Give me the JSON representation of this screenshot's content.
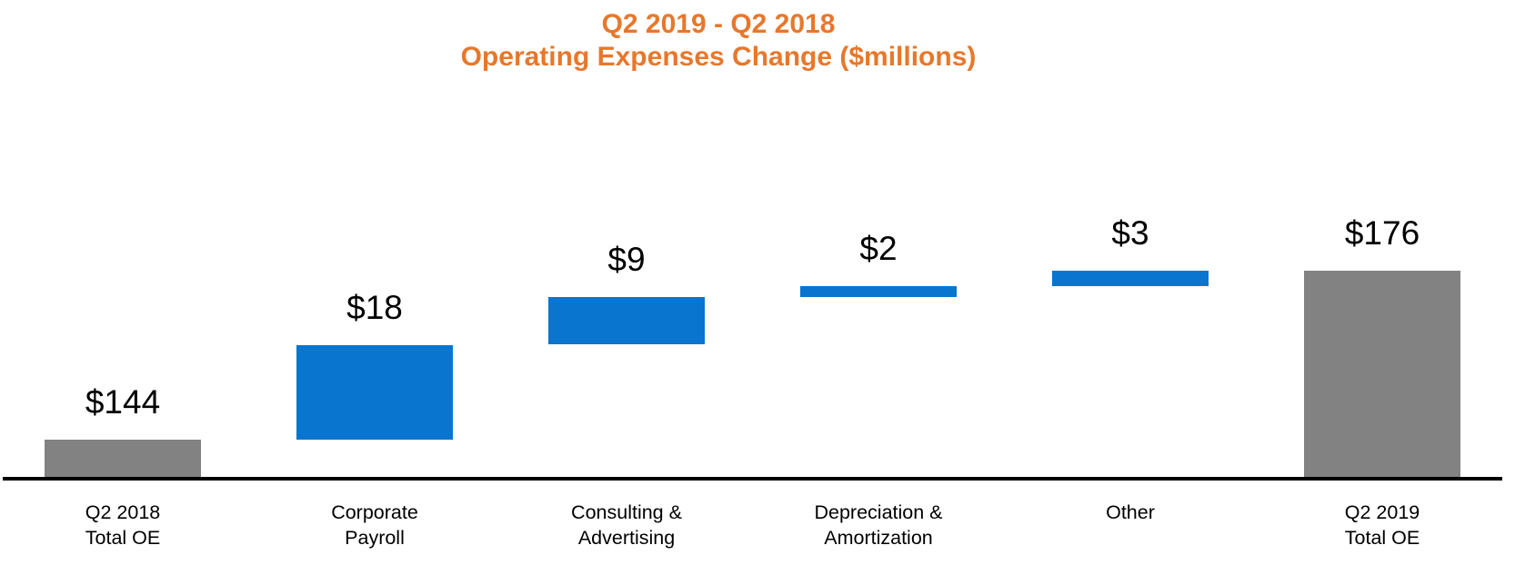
{
  "title": {
    "line1": "Q2 2019 - Q2 2018",
    "line2": "Operating Expenses Change ($millions)",
    "color": "#E6782D"
  },
  "chart_data": {
    "type": "bar",
    "subtype": "waterfall",
    "title": "Q2 2019 - Q2 2018 Operating Expenses Change ($millions)",
    "xlabel": "",
    "ylabel": "",
    "grid": false,
    "legend": false,
    "y_axis_visible": false,
    "ylim": [
      137,
      180
    ],
    "baseline_note": "x-axis baseline drawn at value 137 (truncated axis)",
    "categories": [
      "Q2 2018 Total OE",
      "Corporate Payroll",
      "Consulting & Advertising",
      "Depreciation & Amortization",
      "Other",
      "Q2 2019 Total OE"
    ],
    "steps": [
      {
        "slug": "q2-2018-total-oe",
        "label_lines": [
          "Q2 2018",
          "Total OE"
        ],
        "value": 144,
        "display": "$144",
        "kind": "total",
        "start": 0,
        "end": 144
      },
      {
        "slug": "corporate-payroll",
        "label_lines": [
          "Corporate",
          "Payroll"
        ],
        "value": 18,
        "display": "$18",
        "kind": "increase",
        "start": 144,
        "end": 162
      },
      {
        "slug": "consulting-advertising",
        "label_lines": [
          "Consulting &",
          "Advertising"
        ],
        "value": 9,
        "display": "$9",
        "kind": "increase",
        "start": 162,
        "end": 171
      },
      {
        "slug": "depreciation-amortization",
        "label_lines": [
          "Depreciation &",
          "Amortization"
        ],
        "value": 2,
        "display": "$2",
        "kind": "increase",
        "start": 171,
        "end": 173
      },
      {
        "slug": "other",
        "label_lines": [
          "Other"
        ],
        "value": 3,
        "display": "$3",
        "kind": "increase",
        "start": 173,
        "end": 176
      },
      {
        "slug": "q2-2019-total-oe",
        "label_lines": [
          "Q2 2019",
          "Total OE"
        ],
        "value": 176,
        "display": "$176",
        "kind": "total",
        "start": 0,
        "end": 176
      }
    ],
    "colors": {
      "total_bar": "#828282",
      "increase_bar": "#0A75CF",
      "axis_line": "#000000",
      "value_label": "#000000",
      "category_label": "#000000"
    }
  }
}
